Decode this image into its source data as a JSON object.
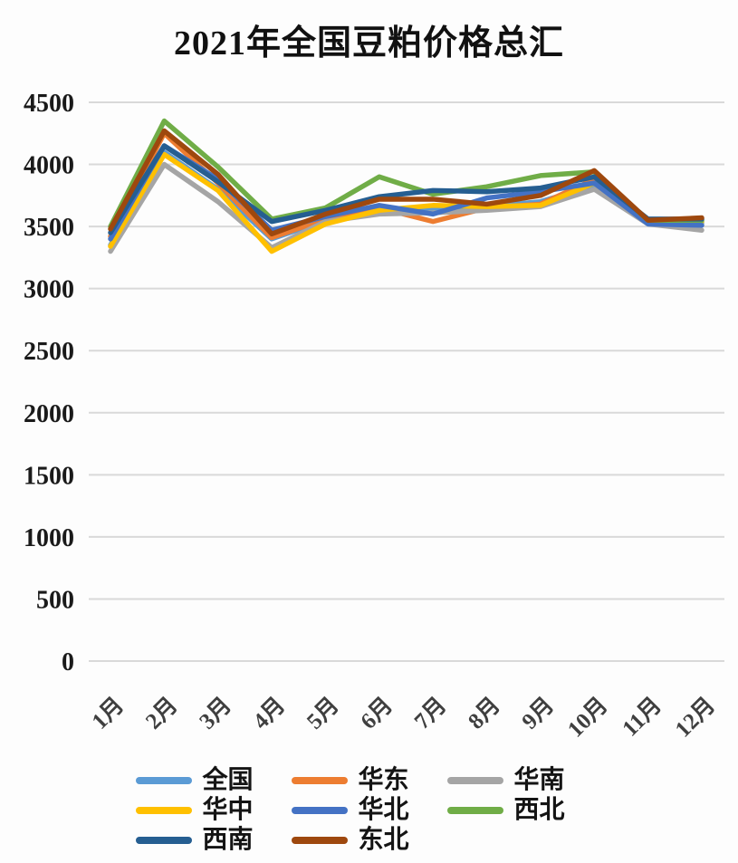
{
  "chart_data": {
    "type": "line",
    "title": "2021年全国豆粕价格总汇",
    "categories": [
      "1月",
      "2月",
      "3月",
      "4月",
      "5月",
      "6月",
      "7月",
      "8月",
      "9月",
      "10月",
      "11月",
      "12月"
    ],
    "series": [
      {
        "name": "全国",
        "color": "#5B9BD5",
        "values": [
          3350,
          4100,
          3800,
          3400,
          3550,
          3640,
          3630,
          3660,
          3700,
          3830,
          3530,
          3530
        ]
      },
      {
        "name": "华东",
        "color": "#ED7D31",
        "values": [
          3420,
          4250,
          3850,
          3410,
          3560,
          3650,
          3540,
          3650,
          3680,
          3880,
          3540,
          3560
        ]
      },
      {
        "name": "华南",
        "color": "#A5A5A5",
        "values": [
          3300,
          4000,
          3700,
          3330,
          3540,
          3600,
          3610,
          3630,
          3660,
          3800,
          3520,
          3470
        ]
      },
      {
        "name": "华中",
        "color": "#FFC000",
        "values": [
          3340,
          4080,
          3790,
          3300,
          3520,
          3630,
          3670,
          3660,
          3670,
          3850,
          3540,
          3540
        ]
      },
      {
        "name": "华北",
        "color": "#4472C4",
        "values": [
          3400,
          4150,
          3880,
          3470,
          3580,
          3670,
          3600,
          3730,
          3780,
          3850,
          3520,
          3510
        ]
      },
      {
        "name": "西北",
        "color": "#70AD47",
        "values": [
          3500,
          4350,
          3980,
          3560,
          3650,
          3900,
          3760,
          3820,
          3910,
          3940,
          3550,
          3550
        ]
      },
      {
        "name": "西南",
        "color": "#255E91",
        "values": [
          3450,
          4150,
          3860,
          3540,
          3630,
          3740,
          3790,
          3780,
          3810,
          3900,
          3560,
          3560
        ]
      },
      {
        "name": "东北",
        "color": "#9E480E",
        "values": [
          3480,
          4270,
          3920,
          3440,
          3600,
          3720,
          3720,
          3680,
          3750,
          3950,
          3550,
          3570
        ]
      }
    ],
    "ylim": [
      0,
      4500
    ],
    "ytick_step": 500,
    "ytick_labels": [
      "0",
      "500",
      "1000",
      "1500",
      "2000",
      "2500",
      "3000",
      "3500",
      "4000",
      "4500"
    ],
    "grid": "horizontal",
    "legend_position": "bottom"
  },
  "style_colors": {
    "gridline": "#d9d9d9",
    "y_label": "#1a1a1a",
    "x_label": "#3f3f3f"
  }
}
